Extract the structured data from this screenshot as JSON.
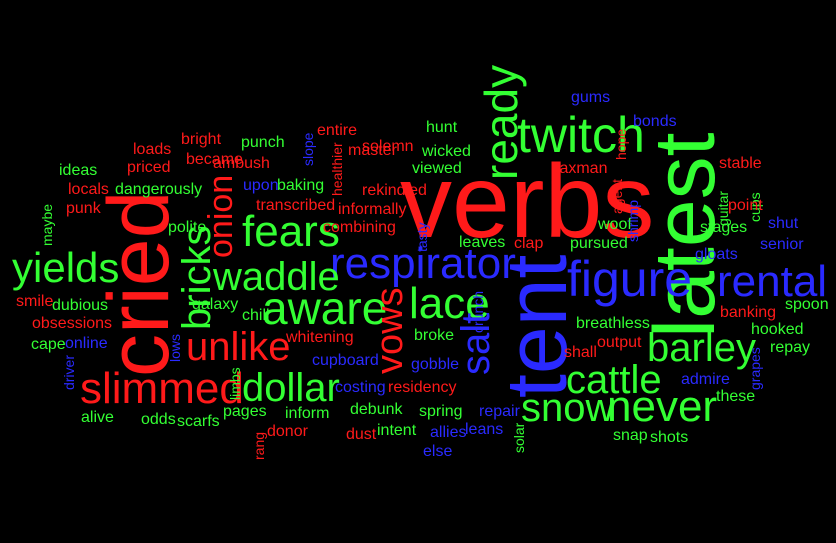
{
  "colors": {
    "background": "#000000",
    "red": "#ff1a1a",
    "green": "#33ff33",
    "blue": "#2a2aff"
  },
  "words": [
    {
      "text": "verbs",
      "color": "red"
    },
    {
      "text": "latest",
      "color": "green"
    },
    {
      "text": "cried",
      "color": "red"
    },
    {
      "text": "tent",
      "color": "blue"
    },
    {
      "text": "twitch",
      "color": "green"
    },
    {
      "text": "ready",
      "color": "green"
    },
    {
      "text": "respirator",
      "color": "blue"
    },
    {
      "text": "figure",
      "color": "blue"
    },
    {
      "text": "rental",
      "color": "blue"
    },
    {
      "text": "fears",
      "color": "green"
    },
    {
      "text": "waddle",
      "color": "green"
    },
    {
      "text": "aware",
      "color": "green"
    },
    {
      "text": "yields",
      "color": "green"
    },
    {
      "text": "bricks",
      "color": "green"
    },
    {
      "text": "onion",
      "color": "red"
    },
    {
      "text": "unlike",
      "color": "red"
    },
    {
      "text": "slimmed",
      "color": "red"
    },
    {
      "text": "dollar",
      "color": "green"
    },
    {
      "text": "lace",
      "color": "green"
    },
    {
      "text": "vows",
      "color": "red"
    },
    {
      "text": "salt",
      "color": "blue"
    },
    {
      "text": "cattle",
      "color": "green"
    },
    {
      "text": "snow",
      "color": "green"
    },
    {
      "text": "never",
      "color": "green"
    },
    {
      "text": "barley",
      "color": "green"
    },
    {
      "text": "loads",
      "color": "red"
    },
    {
      "text": "bright",
      "color": "red"
    },
    {
      "text": "punch",
      "color": "green"
    },
    {
      "text": "entire",
      "color": "red"
    },
    {
      "text": "master",
      "color": "red"
    },
    {
      "text": "hunt",
      "color": "green"
    },
    {
      "text": "wicked",
      "color": "green"
    },
    {
      "text": "solemn",
      "color": "red"
    },
    {
      "text": "viewed",
      "color": "green"
    },
    {
      "text": "rekindled",
      "color": "red"
    },
    {
      "text": "informally",
      "color": "red"
    },
    {
      "text": "combining",
      "color": "red"
    },
    {
      "text": "transcribed",
      "color": "red"
    },
    {
      "text": "baking",
      "color": "green"
    },
    {
      "text": "upon",
      "color": "blue"
    },
    {
      "text": "ambush",
      "color": "red"
    },
    {
      "text": "became",
      "color": "red"
    },
    {
      "text": "priced",
      "color": "red"
    },
    {
      "text": "ideas",
      "color": "green"
    },
    {
      "text": "locals",
      "color": "red"
    },
    {
      "text": "dangerously",
      "color": "green"
    },
    {
      "text": "maybe",
      "color": "green"
    },
    {
      "text": "punk",
      "color": "red"
    },
    {
      "text": "polite",
      "color": "green"
    },
    {
      "text": "chill",
      "color": "green"
    },
    {
      "text": "galaxy",
      "color": "green"
    },
    {
      "text": "smile",
      "color": "red"
    },
    {
      "text": "dubious",
      "color": "green"
    },
    {
      "text": "obsessions",
      "color": "red"
    },
    {
      "text": "cape",
      "color": "green"
    },
    {
      "text": "online",
      "color": "blue"
    },
    {
      "text": "driver",
      "color": "blue"
    },
    {
      "text": "lows",
      "color": "blue"
    },
    {
      "text": "limbs",
      "color": "green"
    },
    {
      "text": "whitening",
      "color": "red"
    },
    {
      "text": "cupboard",
      "color": "blue"
    },
    {
      "text": "costing",
      "color": "blue"
    },
    {
      "text": "residency",
      "color": "red"
    },
    {
      "text": "alive",
      "color": "green"
    },
    {
      "text": "odds",
      "color": "green"
    },
    {
      "text": "scarfs",
      "color": "green"
    },
    {
      "text": "pages",
      "color": "green"
    },
    {
      "text": "inform",
      "color": "green"
    },
    {
      "text": "donor",
      "color": "red"
    },
    {
      "text": "rang",
      "color": "red"
    },
    {
      "text": "debunk",
      "color": "green"
    },
    {
      "text": "dust",
      "color": "red"
    },
    {
      "text": "intent",
      "color": "green"
    },
    {
      "text": "spring",
      "color": "green"
    },
    {
      "text": "allies",
      "color": "blue"
    },
    {
      "text": "else",
      "color": "blue"
    },
    {
      "text": "leans",
      "color": "blue"
    },
    {
      "text": "repair",
      "color": "blue"
    },
    {
      "text": "solar",
      "color": "green"
    },
    {
      "text": "gobble",
      "color": "blue"
    },
    {
      "text": "shall",
      "color": "red"
    },
    {
      "text": "output",
      "color": "red"
    },
    {
      "text": "broke",
      "color": "green"
    },
    {
      "text": "crunch",
      "color": "blue"
    },
    {
      "text": "tasty",
      "color": "blue"
    },
    {
      "text": "leaves",
      "color": "green"
    },
    {
      "text": "clap",
      "color": "red"
    },
    {
      "text": "pursued",
      "color": "green"
    },
    {
      "text": "woof",
      "color": "green"
    },
    {
      "text": "shrimp",
      "color": "blue"
    },
    {
      "text": "breathless",
      "color": "green"
    },
    {
      "text": "taxman",
      "color": "red"
    },
    {
      "text": "agent",
      "color": "red"
    },
    {
      "text": "hope",
      "color": "red"
    },
    {
      "text": "gums",
      "color": "blue"
    },
    {
      "text": "bonds",
      "color": "blue"
    },
    {
      "text": "stable",
      "color": "red"
    },
    {
      "text": "cups",
      "color": "green"
    },
    {
      "text": "point",
      "color": "red"
    },
    {
      "text": "guitar",
      "color": "green"
    },
    {
      "text": "stages",
      "color": "green"
    },
    {
      "text": "shut",
      "color": "blue"
    },
    {
      "text": "senior",
      "color": "blue"
    },
    {
      "text": "gloats",
      "color": "blue"
    },
    {
      "text": "spoon",
      "color": "green"
    },
    {
      "text": "banking",
      "color": "red"
    },
    {
      "text": "hooked",
      "color": "green"
    },
    {
      "text": "repay",
      "color": "green"
    },
    {
      "text": "grapes",
      "color": "blue"
    },
    {
      "text": "admire",
      "color": "blue"
    },
    {
      "text": "these",
      "color": "green"
    },
    {
      "text": "snap",
      "color": "green"
    },
    {
      "text": "shots",
      "color": "green"
    },
    {
      "text": "slope",
      "color": "blue"
    },
    {
      "text": "healthier",
      "color": "red"
    }
  ]
}
